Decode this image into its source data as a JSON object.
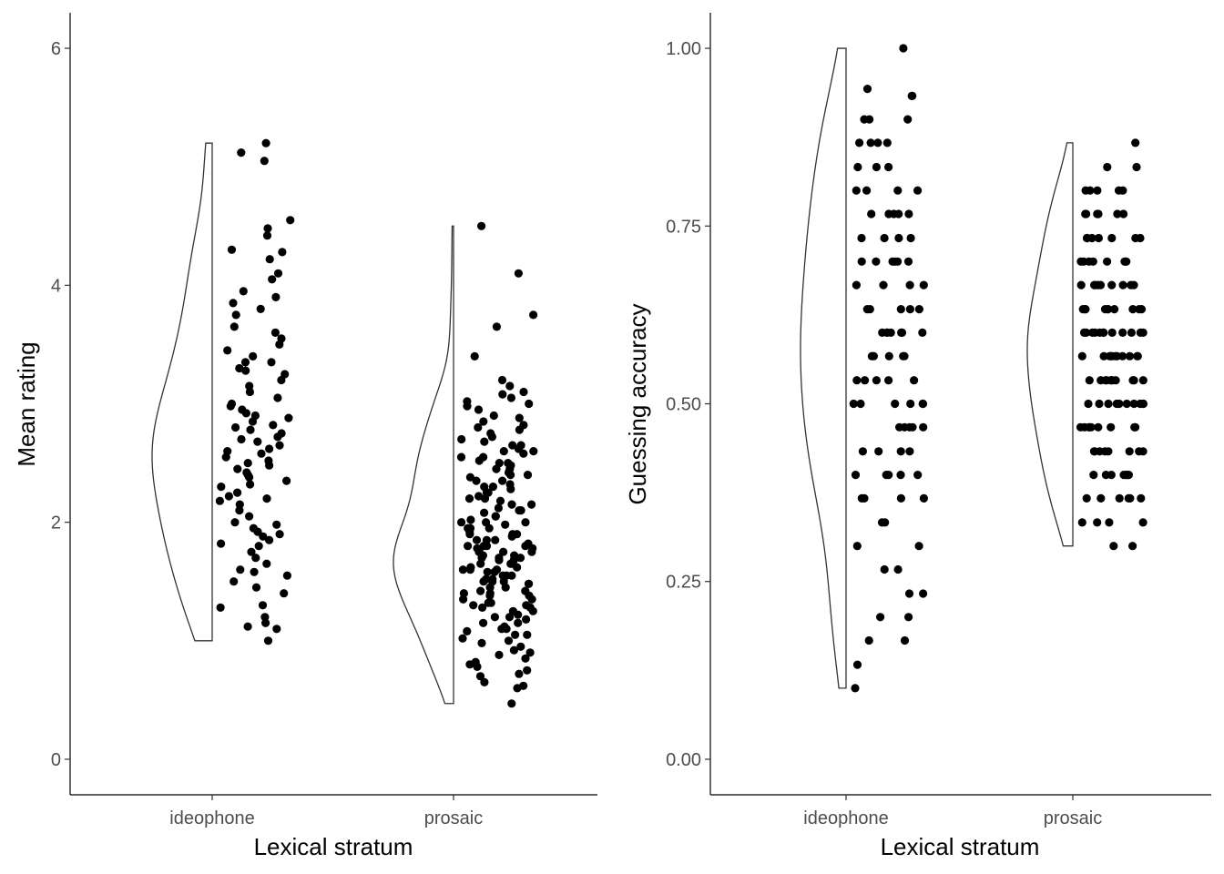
{
  "chart_data": [
    {
      "type": "scatter",
      "geoms": [
        "half-violin",
        "jittered points"
      ],
      "title": "",
      "xlabel": "Lexical stratum",
      "ylabel": "Mean rating",
      "categories": [
        "ideophone",
        "prosaic"
      ],
      "ylim": [
        -0.3,
        6.3
      ],
      "yticks": [
        0,
        2,
        4,
        6
      ],
      "ytick_labels": [
        "0",
        "2",
        "4",
        "6"
      ],
      "grid": false,
      "legend": "none",
      "point_color": "#000000",
      "violin_outline": "#333333",
      "groups": [
        {
          "category": "ideophone",
          "min": 1.0,
          "max": 5.2,
          "values": [
            5.2,
            5.12,
            5.05,
            4.55,
            4.48,
            4.42,
            4.3,
            4.28,
            4.22,
            4.1,
            4.05,
            3.95,
            3.9,
            3.85,
            3.8,
            3.75,
            3.65,
            3.6,
            3.55,
            3.5,
            3.45,
            3.4,
            3.35,
            3.35,
            3.3,
            3.28,
            3.25,
            3.2,
            3.15,
            3.1,
            3.05,
            3.0,
            2.98,
            2.95,
            2.92,
            2.9,
            2.88,
            2.85,
            2.82,
            2.8,
            2.78,
            2.75,
            2.72,
            2.7,
            2.68,
            2.65,
            2.62,
            2.6,
            2.58,
            2.55,
            2.52,
            2.5,
            2.48,
            2.45,
            2.42,
            2.4,
            2.38,
            2.35,
            2.32,
            2.3,
            2.25,
            2.22,
            2.2,
            2.18,
            2.15,
            2.1,
            2.05,
            2.0,
            1.98,
            1.95,
            1.92,
            1.9,
            1.88,
            1.85,
            1.82,
            1.8,
            1.75,
            1.7,
            1.65,
            1.6,
            1.58,
            1.55,
            1.5,
            1.45,
            1.4,
            1.3,
            1.28,
            1.2,
            1.15,
            1.12,
            1.1,
            1.0
          ]
        },
        {
          "category": "prosaic",
          "min": 0.47,
          "max": 4.5,
          "values": [
            4.5,
            4.1,
            3.75,
            3.65,
            3.4,
            3.2,
            3.15,
            3.1,
            3.08,
            3.05,
            3.02,
            3.0,
            2.98,
            2.95,
            2.9,
            2.88,
            2.85,
            2.82,
            2.8,
            2.78,
            2.75,
            2.72,
            2.7,
            2.68,
            2.65,
            2.65,
            2.62,
            2.6,
            2.6,
            2.58,
            2.55,
            2.55,
            2.52,
            2.5,
            2.5,
            2.48,
            2.45,
            2.45,
            2.42,
            2.4,
            2.4,
            2.38,
            2.35,
            2.35,
            2.32,
            2.3,
            2.3,
            2.28,
            2.25,
            2.25,
            2.22,
            2.2,
            2.2,
            2.18,
            2.15,
            2.15,
            2.12,
            2.1,
            2.1,
            2.08,
            2.05,
            2.05,
            2.02,
            2.0,
            2.0,
            2.0,
            1.98,
            1.95,
            1.95,
            1.95,
            1.92,
            1.9,
            1.9,
            1.9,
            1.88,
            1.85,
            1.85,
            1.85,
            1.82,
            1.8,
            1.8,
            1.8,
            1.8,
            1.78,
            1.78,
            1.75,
            1.75,
            1.75,
            1.75,
            1.72,
            1.72,
            1.7,
            1.7,
            1.7,
            1.68,
            1.68,
            1.65,
            1.65,
            1.65,
            1.62,
            1.62,
            1.6,
            1.6,
            1.6,
            1.58,
            1.58,
            1.55,
            1.55,
            1.55,
            1.52,
            1.52,
            1.5,
            1.5,
            1.5,
            1.48,
            1.48,
            1.45,
            1.45,
            1.42,
            1.42,
            1.4,
            1.4,
            1.38,
            1.38,
            1.35,
            1.35,
            1.32,
            1.32,
            1.3,
            1.3,
            1.28,
            1.28,
            1.25,
            1.25,
            1.22,
            1.2,
            1.2,
            1.18,
            1.15,
            1.15,
            1.12,
            1.1,
            1.1,
            1.08,
            1.05,
            1.05,
            1.02,
            1.0,
            0.98,
            0.95,
            0.92,
            0.9,
            0.88,
            0.85,
            0.82,
            0.8,
            0.78,
            0.75,
            0.72,
            0.7,
            0.65,
            0.62,
            0.6,
            0.47
          ]
        }
      ]
    },
    {
      "type": "scatter",
      "geoms": [
        "half-violin",
        "jittered points"
      ],
      "title": "",
      "xlabel": "Lexical stratum",
      "ylabel": "Guessing accuracy",
      "categories": [
        "ideophone",
        "prosaic"
      ],
      "ylim": [
        -0.05,
        1.05
      ],
      "yticks": [
        0,
        0.25,
        0.5,
        0.75,
        1.0
      ],
      "ytick_labels": [
        "0.00",
        "0.25",
        "0.50",
        "0.75",
        "1.00"
      ],
      "grid": false,
      "legend": "none",
      "point_color": "#000000",
      "violin_outline": "#333333",
      "groups": [
        {
          "category": "ideophone",
          "min": 0.1,
          "max": 1.0,
          "values": [
            1.0,
            0.943,
            0.933,
            0.933,
            0.9,
            0.9,
            0.9,
            0.867,
            0.867,
            0.867,
            0.867,
            0.833,
            0.833,
            0.833,
            0.8,
            0.8,
            0.8,
            0.8,
            0.767,
            0.767,
            0.767,
            0.767,
            0.767,
            0.733,
            0.733,
            0.733,
            0.733,
            0.7,
            0.7,
            0.7,
            0.7,
            0.7,
            0.7,
            0.667,
            0.667,
            0.667,
            0.667,
            0.633,
            0.633,
            0.633,
            0.633,
            0.633,
            0.6,
            0.6,
            0.6,
            0.6,
            0.6,
            0.6,
            0.6,
            0.567,
            0.567,
            0.567,
            0.567,
            0.567,
            0.533,
            0.533,
            0.533,
            0.533,
            0.533,
            0.5,
            0.5,
            0.5,
            0.5,
            0.5,
            0.5,
            0.467,
            0.467,
            0.467,
            0.467,
            0.467,
            0.433,
            0.433,
            0.433,
            0.433,
            0.4,
            0.4,
            0.4,
            0.4,
            0.4,
            0.367,
            0.367,
            0.367,
            0.367,
            0.333,
            0.333,
            0.3,
            0.3,
            0.267,
            0.267,
            0.233,
            0.233,
            0.2,
            0.2,
            0.167,
            0.167,
            0.133,
            0.1
          ]
        },
        {
          "category": "prosaic",
          "min": 0.3,
          "max": 0.867,
          "values": [
            0.867,
            0.833,
            0.833,
            0.8,
            0.8,
            0.8,
            0.8,
            0.8,
            0.767,
            0.767,
            0.767,
            0.767,
            0.767,
            0.767,
            0.733,
            0.733,
            0.733,
            0.733,
            0.733,
            0.733,
            0.733,
            0.7,
            0.7,
            0.7,
            0.7,
            0.7,
            0.7,
            0.7,
            0.7,
            0.667,
            0.667,
            0.667,
            0.667,
            0.667,
            0.667,
            0.667,
            0.667,
            0.667,
            0.633,
            0.633,
            0.633,
            0.633,
            0.633,
            0.633,
            0.633,
            0.633,
            0.633,
            0.633,
            0.6,
            0.6,
            0.6,
            0.6,
            0.6,
            0.6,
            0.6,
            0.6,
            0.6,
            0.6,
            0.6,
            0.6,
            0.567,
            0.567,
            0.567,
            0.567,
            0.567,
            0.567,
            0.567,
            0.567,
            0.567,
            0.567,
            0.567,
            0.533,
            0.533,
            0.533,
            0.533,
            0.533,
            0.533,
            0.533,
            0.533,
            0.533,
            0.533,
            0.533,
            0.5,
            0.5,
            0.5,
            0.5,
            0.5,
            0.5,
            0.5,
            0.5,
            0.5,
            0.5,
            0.467,
            0.467,
            0.467,
            0.467,
            0.467,
            0.467,
            0.467,
            0.467,
            0.467,
            0.433,
            0.433,
            0.433,
            0.433,
            0.433,
            0.433,
            0.433,
            0.433,
            0.4,
            0.4,
            0.4,
            0.4,
            0.4,
            0.4,
            0.4,
            0.367,
            0.367,
            0.367,
            0.367,
            0.367,
            0.367,
            0.333,
            0.333,
            0.333,
            0.333,
            0.3,
            0.3
          ]
        }
      ]
    }
  ]
}
